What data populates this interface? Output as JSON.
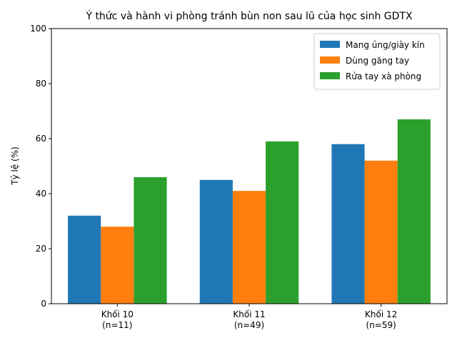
{
  "chart_data": {
    "type": "bar",
    "title": "Ý thức và hành vi phòng tránh bùn non sau lũ của học sinh GDTX",
    "ylabel": "Tỷ lệ (%)",
    "categories": [
      "Khối 10\n(n=11)",
      "Khối 11\n(n=49)",
      "Khối 12\n(n=59)"
    ],
    "series": [
      {
        "name": "Mang ủng/giày kín",
        "color": "#1f77b4",
        "values": [
          32,
          45,
          58
        ]
      },
      {
        "name": "Dùng găng tay",
        "color": "#ff7f0e",
        "values": [
          28,
          41,
          52
        ]
      },
      {
        "name": "Rửa tay xà phòng",
        "color": "#2ca02c",
        "values": [
          46,
          59,
          67
        ]
      }
    ],
    "ylim": [
      0,
      100
    ],
    "yticks": [
      0,
      20,
      40,
      60,
      80,
      100
    ],
    "legend": "upper right"
  }
}
